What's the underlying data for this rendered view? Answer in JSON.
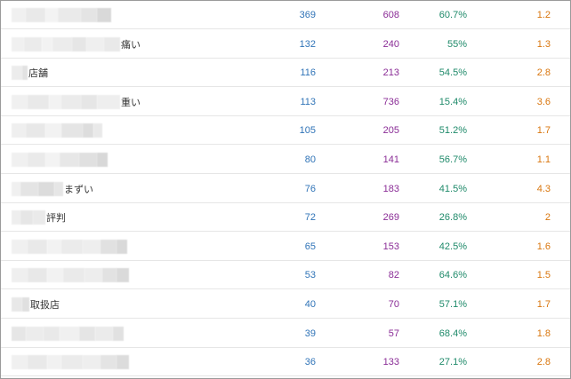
{
  "table": {
    "rows": [
      {
        "keyword_suffix": "",
        "col1": "369",
        "col2": "608",
        "col3": "60.7%",
        "col4": "1.2"
      },
      {
        "keyword_suffix": "痛い",
        "col1": "132",
        "col2": "240",
        "col3": "55%",
        "col4": "1.3"
      },
      {
        "keyword_suffix": "店舗",
        "col1": "116",
        "col2": "213",
        "col3": "54.5%",
        "col4": "2.8"
      },
      {
        "keyword_suffix": "重い",
        "col1": "113",
        "col2": "736",
        "col3": "15.4%",
        "col4": "3.6"
      },
      {
        "keyword_suffix": "",
        "col1": "105",
        "col2": "205",
        "col3": "51.2%",
        "col4": "1.7"
      },
      {
        "keyword_suffix": "",
        "col1": "80",
        "col2": "141",
        "col3": "56.7%",
        "col4": "1.1"
      },
      {
        "keyword_suffix": "まずい",
        "col1": "76",
        "col2": "183",
        "col3": "41.5%",
        "col4": "4.3"
      },
      {
        "keyword_suffix": "評判",
        "col1": "72",
        "col2": "269",
        "col3": "26.8%",
        "col4": "2"
      },
      {
        "keyword_suffix": "",
        "col1": "65",
        "col2": "153",
        "col3": "42.5%",
        "col4": "1.6"
      },
      {
        "keyword_suffix": "",
        "col1": "53",
        "col2": "82",
        "col3": "64.6%",
        "col4": "1.5"
      },
      {
        "keyword_suffix": "取扱店",
        "col1": "40",
        "col2": "70",
        "col3": "57.1%",
        "col4": "1.7"
      },
      {
        "keyword_suffix": "",
        "col1": "39",
        "col2": "57",
        "col3": "68.4%",
        "col4": "1.8"
      },
      {
        "keyword_suffix": "",
        "col1": "36",
        "col2": "133",
        "col3": "27.1%",
        "col4": "2.8"
      }
    ]
  },
  "colors": {
    "col1": "#2f73b7",
    "col2": "#8a2c96",
    "col3": "#1f8a6a",
    "col4": "#d9760e",
    "row_border": "#e6e6e6",
    "frame_border": "#9a9a9a"
  }
}
